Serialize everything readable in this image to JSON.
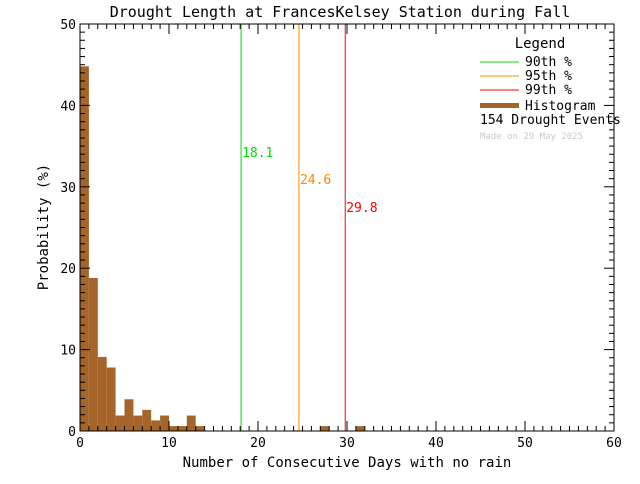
{
  "chart_data": {
    "type": "bar",
    "title": "Drought Length at FrancesKelsey Station during Fall",
    "xlabel": "Number of Consecutive Days with no rain",
    "ylabel": "Probability (%)",
    "xlim": [
      0,
      60
    ],
    "ylim": [
      0,
      50
    ],
    "xticks": [
      "0",
      "10",
      "20",
      "30",
      "40",
      "50",
      "60"
    ],
    "yticks": [
      "0",
      "10",
      "20",
      "30",
      "40",
      "50"
    ],
    "bin_width": 1,
    "bins": [
      {
        "x": 0,
        "value": 44.8
      },
      {
        "x": 1,
        "value": 18.8
      },
      {
        "x": 2,
        "value": 9.1
      },
      {
        "x": 3,
        "value": 7.8
      },
      {
        "x": 4,
        "value": 1.9
      },
      {
        "x": 5,
        "value": 3.9
      },
      {
        "x": 6,
        "value": 1.9
      },
      {
        "x": 7,
        "value": 2.6
      },
      {
        "x": 8,
        "value": 1.3
      },
      {
        "x": 9,
        "value": 1.9
      },
      {
        "x": 10,
        "value": 0.6
      },
      {
        "x": 11,
        "value": 0.6
      },
      {
        "x": 12,
        "value": 1.9
      },
      {
        "x": 13,
        "value": 0.6
      },
      {
        "x": 27,
        "value": 0.6
      },
      {
        "x": 31,
        "value": 0.6
      }
    ],
    "percentiles": [
      {
        "name": "90th %",
        "value": 18.1,
        "label": "18.1",
        "color": "#00dd00"
      },
      {
        "name": "95th %",
        "value": 24.6,
        "label": "24.6",
        "color": "#ff8800"
      },
      {
        "name": "99th %",
        "value": 29.8,
        "label": "29.8",
        "color": "#ff0000"
      }
    ],
    "bar_color": "#a5652a",
    "legend": {
      "title": "Legend",
      "placement": "top-right",
      "histogram_label": "Histogram",
      "events": "154 Drought Events",
      "made_on": "Made on 29 May 2025"
    }
  }
}
